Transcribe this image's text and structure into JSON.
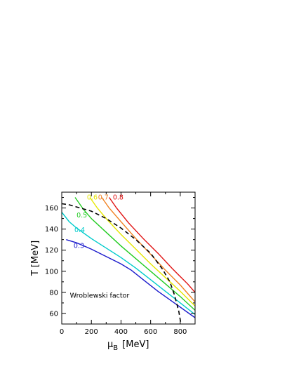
{
  "chart_data": {
    "type": "line",
    "title": "",
    "xlabel": "[MeV]",
    "xlabel_symbol": "μ",
    "xlabel_sub": "B",
    "ylabel": "T  [MeV]",
    "xlim": [
      0,
      900
    ],
    "ylim": [
      50,
      175
    ],
    "x_ticks": [
      0,
      200,
      400,
      600,
      800
    ],
    "y_ticks": [
      60,
      80,
      100,
      120,
      140,
      160
    ],
    "grid": false,
    "annotation": "Wroblewski factor",
    "series": [
      {
        "name": "0.3",
        "color": "#1a1acc",
        "dashed": false,
        "points": [
          [
            30,
            130
          ],
          [
            100,
            127
          ],
          [
            200,
            121
          ],
          [
            300,
            114
          ],
          [
            400,
            107
          ],
          [
            470,
            101
          ],
          [
            550,
            92
          ],
          [
            650,
            81
          ],
          [
            750,
            71
          ],
          [
            850,
            61
          ],
          [
            900,
            56
          ]
        ]
      },
      {
        "name": "0.4",
        "color": "#00cccc",
        "dashed": false,
        "points": [
          [
            0,
            156
          ],
          [
            50,
            147
          ],
          [
            100,
            141
          ],
          [
            200,
            131
          ],
          [
            300,
            122
          ],
          [
            400,
            113
          ],
          [
            500,
            103
          ],
          [
            600,
            92
          ],
          [
            700,
            81
          ],
          [
            800,
            70
          ],
          [
            900,
            59
          ]
        ]
      },
      {
        "name": "0.5",
        "color": "#22cc22",
        "dashed": false,
        "points": [
          [
            90,
            170
          ],
          [
            150,
            158
          ],
          [
            200,
            150
          ],
          [
            300,
            137
          ],
          [
            400,
            124
          ],
          [
            500,
            112
          ],
          [
            600,
            100
          ],
          [
            700,
            88
          ],
          [
            800,
            76
          ],
          [
            900,
            63
          ]
        ]
      },
      {
        "name": "0.6",
        "color": "#e6e600",
        "dashed": false,
        "points": [
          [
            190,
            170
          ],
          [
            240,
            160
          ],
          [
            300,
            150
          ],
          [
            400,
            135
          ],
          [
            500,
            121
          ],
          [
            600,
            107
          ],
          [
            700,
            94
          ],
          [
            800,
            81
          ],
          [
            900,
            67
          ]
        ]
      },
      {
        "name": "0.7",
        "color": "#f08020",
        "dashed": false,
        "points": [
          [
            270,
            170
          ],
          [
            320,
            160
          ],
          [
            400,
            147
          ],
          [
            500,
            131
          ],
          [
            600,
            116
          ],
          [
            700,
            101
          ],
          [
            800,
            87
          ],
          [
            900,
            71
          ]
        ]
      },
      {
        "name": "0.8",
        "color": "#e01010",
        "dashed": false,
        "points": [
          [
            320,
            170
          ],
          [
            370,
            160
          ],
          [
            450,
            146
          ],
          [
            550,
            131
          ],
          [
            650,
            117
          ],
          [
            750,
            102
          ],
          [
            850,
            88
          ],
          [
            900,
            80
          ]
        ]
      },
      {
        "name": "",
        "color": "#000000",
        "dashed": true,
        "points": [
          [
            0,
            164
          ],
          [
            50,
            163
          ],
          [
            100,
            161
          ],
          [
            200,
            157
          ],
          [
            300,
            150
          ],
          [
            400,
            141
          ],
          [
            500,
            130
          ],
          [
            600,
            117
          ],
          [
            680,
            102
          ],
          [
            730,
            90
          ],
          [
            760,
            78
          ],
          [
            790,
            62
          ],
          [
            805,
            50
          ]
        ]
      }
    ],
    "labels": [
      {
        "text": "0.3",
        "color": "#1a1acc",
        "at": [
          80,
          122
        ]
      },
      {
        "text": "0.4",
        "color": "#00cccc",
        "at": [
          85,
          137
        ]
      },
      {
        "text": "0.5",
        "color": "#22cc22",
        "at": [
          100,
          151
        ]
      },
      {
        "text": "0.6",
        "color": "#e6e600",
        "at": [
          170,
          168
        ]
      },
      {
        "text": "0.7",
        "color": "#f08020",
        "at": [
          245,
          168
        ]
      },
      {
        "text": "0.8",
        "color": "#e01010",
        "at": [
          345,
          168
        ]
      }
    ],
    "annotation_at": [
      55,
      75
    ]
  }
}
